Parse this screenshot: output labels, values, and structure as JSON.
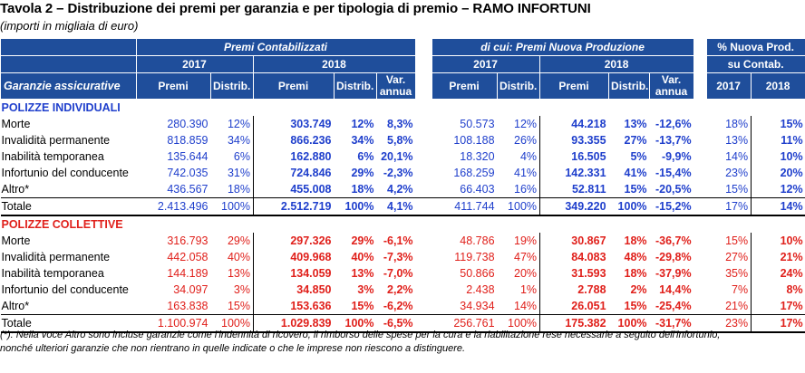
{
  "title": "Tavola 2 – Distribuzione dei premi per garanzia e per tipologia di premio – RAMO INFORTUNI",
  "subtitle": "(importi in migliaia di euro)",
  "headers": {
    "premi_contabilizzati": "Premi Contabilizzati",
    "nuova_produzione": "di cui: Premi Nuova Produzione",
    "perc_nuova": "% Nuova Prod.",
    "su_contab": "su Contab.",
    "year_2017": "2017",
    "year_2018": "2018",
    "garanzie": "Garanzie assicurative",
    "premi": "Premi",
    "distrib": "Distrib.",
    "var_annua_1": "Var.",
    "var_annua_2": "annua"
  },
  "sections": [
    {
      "name": "POLIZZE INDIVIDUALI",
      "color": "#1f3fcc",
      "rows": [
        {
          "label": "Morte",
          "c": [
            "280.390",
            "12%",
            "303.749",
            "12%",
            "8,3%",
            "50.573",
            "12%",
            "44.218",
            "13%",
            "-12,6%",
            "18%",
            "15%"
          ]
        },
        {
          "label": "Invalidità permanente",
          "c": [
            "818.859",
            "34%",
            "866.236",
            "34%",
            "5,8%",
            "108.188",
            "26%",
            "93.355",
            "27%",
            "-13,7%",
            "13%",
            "11%"
          ]
        },
        {
          "label": "Inabilità temporanea",
          "c": [
            "135.644",
            "6%",
            "162.880",
            "6%",
            "20,1%",
            "18.320",
            "4%",
            "16.505",
            "5%",
            "-9,9%",
            "14%",
            "10%"
          ]
        },
        {
          "label": "Infortunio del conducente",
          "c": [
            "742.035",
            "31%",
            "724.846",
            "29%",
            "-2,3%",
            "168.259",
            "41%",
            "142.331",
            "41%",
            "-15,4%",
            "23%",
            "20%"
          ]
        },
        {
          "label": "Altro*",
          "c": [
            "436.567",
            "18%",
            "455.008",
            "18%",
            "4,2%",
            "66.403",
            "16%",
            "52.811",
            "15%",
            "-20,5%",
            "15%",
            "12%"
          ]
        },
        {
          "label": "Totale",
          "c": [
            "2.413.496",
            "100%",
            "2.512.719",
            "100%",
            "4,1%",
            "411.744",
            "100%",
            "349.220",
            "100%",
            "-15,2%",
            "17%",
            "14%"
          ]
        }
      ]
    },
    {
      "name": "POLIZZE COLLETTIVE",
      "color": "#e0201b",
      "rows": [
        {
          "label": "Morte",
          "c": [
            "316.793",
            "29%",
            "297.326",
            "29%",
            "-6,1%",
            "48.786",
            "19%",
            "30.867",
            "18%",
            "-36,7%",
            "15%",
            "10%"
          ]
        },
        {
          "label": "Invalidità permanente",
          "c": [
            "442.058",
            "40%",
            "409.968",
            "40%",
            "-7,3%",
            "119.738",
            "47%",
            "84.083",
            "48%",
            "-29,8%",
            "27%",
            "21%"
          ]
        },
        {
          "label": "Inabilità temporanea",
          "c": [
            "144.189",
            "13%",
            "134.059",
            "13%",
            "-7,0%",
            "50.866",
            "20%",
            "31.593",
            "18%",
            "-37,9%",
            "35%",
            "24%"
          ]
        },
        {
          "label": "Infortunio del conducente",
          "c": [
            "34.097",
            "3%",
            "34.850",
            "3%",
            "2,2%",
            "2.438",
            "1%",
            "2.788",
            "2%",
            "14,4%",
            "7%",
            "8%"
          ]
        },
        {
          "label": "Altro*",
          "c": [
            "163.838",
            "15%",
            "153.636",
            "15%",
            "-6,2%",
            "34.934",
            "14%",
            "26.051",
            "15%",
            "-25,4%",
            "21%",
            "17%"
          ]
        },
        {
          "label": "Totale",
          "c": [
            "1.100.974",
            "100%",
            "1.029.839",
            "100%",
            "-6,5%",
            "256.761",
            "100%",
            "175.382",
            "100%",
            "-31,7%",
            "23%",
            "17%"
          ]
        }
      ]
    }
  ],
  "footnote": [
    "(*): Nella voce Altro sono incluse garanzie come l'indennità di ricovero, il rimborso delle spese per la cura e la riabilitazione rese necessarie a seguito dell'infortunio,",
    "nonché ulteriori garanzie che non rientrano in quelle indicate o che le imprese non riescono a distinguere."
  ]
}
